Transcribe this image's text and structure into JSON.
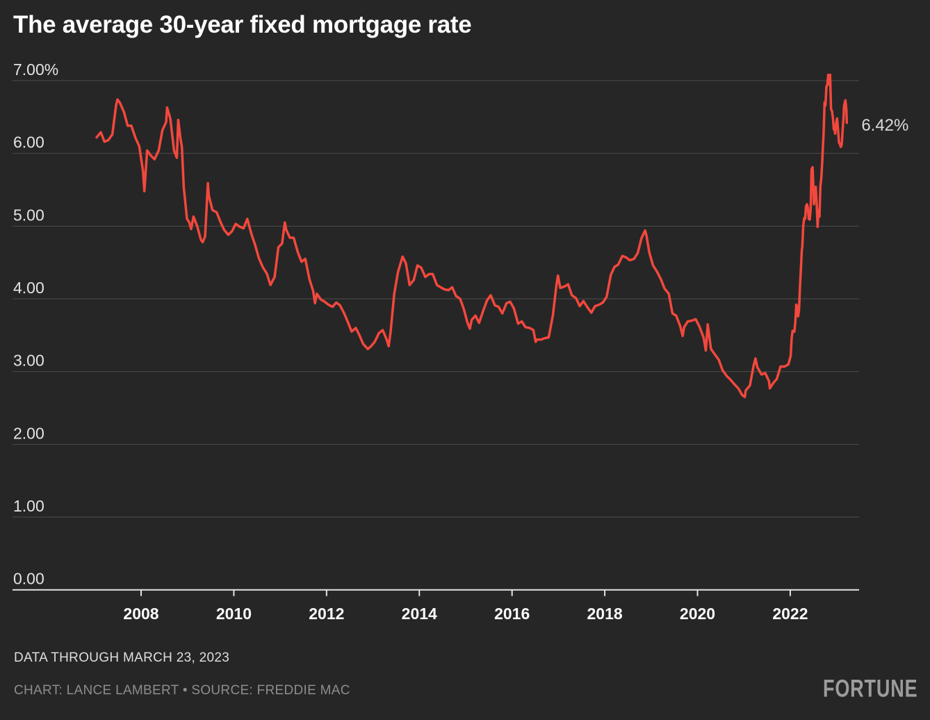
{
  "colors": {
    "background": "#262626",
    "grid": "#4e4e4e",
    "axis": "#e3e3e1",
    "line": "#f3483d",
    "title": "#ffffff",
    "y_label": "#e4e4e4",
    "x_label": "#fafafa",
    "annotation": "#dadada",
    "note": "#dedede",
    "credit": "#8d8d8d",
    "logo": "#9c9c9c"
  },
  "footer": {
    "note": "DATA THROUGH MARCH 23, 2023",
    "credit": "CHART: LANCE LAMBERT • SOURCE: FREDDIE MAC",
    "logo": "FORTUNE"
  },
  "chart_data": {
    "type": "line",
    "title": "The average 30-year fixed mortgage rate",
    "xlabel": "",
    "ylabel": "",
    "grid": "horizontal",
    "legend": "none",
    "xlim": [
      2005.2,
      2023.5
    ],
    "ylim": [
      0,
      7.0
    ],
    "x_ticks": [
      2008,
      2010,
      2012,
      2014,
      2016,
      2018,
      2020,
      2022
    ],
    "y_ticks": [
      {
        "value": 7,
        "label": "7.00%"
      },
      {
        "value": 6,
        "label": "6.00"
      },
      {
        "value": 5,
        "label": "5.00"
      },
      {
        "value": 4,
        "label": "4.00"
      },
      {
        "value": 3,
        "label": "3.00"
      },
      {
        "value": 2,
        "label": "2.00"
      },
      {
        "value": 1,
        "label": "1.00"
      },
      {
        "value": 0,
        "label": "0.00"
      }
    ],
    "end_label": "6.42%",
    "last_value": 6.42,
    "series": [
      {
        "name": "30-year fixed mortgage rate (%)",
        "color": "#f3483d",
        "points": [
          [
            2007.04,
            6.22
          ],
          [
            2007.13,
            6.29
          ],
          [
            2007.21,
            6.16
          ],
          [
            2007.29,
            6.18
          ],
          [
            2007.38,
            6.26
          ],
          [
            2007.46,
            6.66
          ],
          [
            2007.49,
            6.74
          ],
          [
            2007.54,
            6.7
          ],
          [
            2007.63,
            6.57
          ],
          [
            2007.71,
            6.38
          ],
          [
            2007.79,
            6.38
          ],
          [
            2007.88,
            6.21
          ],
          [
            2007.96,
            6.1
          ],
          [
            2008.04,
            5.76
          ],
          [
            2008.07,
            5.48
          ],
          [
            2008.13,
            6.04
          ],
          [
            2008.21,
            5.97
          ],
          [
            2008.29,
            5.92
          ],
          [
            2008.38,
            6.04
          ],
          [
            2008.46,
            6.32
          ],
          [
            2008.54,
            6.43
          ],
          [
            2008.56,
            6.63
          ],
          [
            2008.63,
            6.48
          ],
          [
            2008.71,
            6.04
          ],
          [
            2008.77,
            5.94
          ],
          [
            2008.8,
            6.46
          ],
          [
            2008.85,
            6.2
          ],
          [
            2008.88,
            6.09
          ],
          [
            2008.92,
            5.53
          ],
          [
            2008.96,
            5.29
          ],
          [
            2008.99,
            5.1
          ],
          [
            2009.04,
            5.05
          ],
          [
            2009.08,
            4.96
          ],
          [
            2009.13,
            5.13
          ],
          [
            2009.21,
            5.0
          ],
          [
            2009.29,
            4.81
          ],
          [
            2009.33,
            4.78
          ],
          [
            2009.38,
            4.86
          ],
          [
            2009.44,
            5.59
          ],
          [
            2009.46,
            5.42
          ],
          [
            2009.54,
            5.22
          ],
          [
            2009.63,
            5.19
          ],
          [
            2009.71,
            5.06
          ],
          [
            2009.79,
            4.95
          ],
          [
            2009.88,
            4.88
          ],
          [
            2009.96,
            4.93
          ],
          [
            2010.04,
            5.03
          ],
          [
            2010.13,
            4.99
          ],
          [
            2010.21,
            4.97
          ],
          [
            2010.29,
            5.1
          ],
          [
            2010.38,
            4.89
          ],
          [
            2010.46,
            4.74
          ],
          [
            2010.54,
            4.56
          ],
          [
            2010.63,
            4.43
          ],
          [
            2010.71,
            4.35
          ],
          [
            2010.79,
            4.19
          ],
          [
            2010.88,
            4.3
          ],
          [
            2010.96,
            4.71
          ],
          [
            2011.04,
            4.76
          ],
          [
            2011.1,
            5.05
          ],
          [
            2011.13,
            4.95
          ],
          [
            2011.21,
            4.84
          ],
          [
            2011.29,
            4.84
          ],
          [
            2011.38,
            4.64
          ],
          [
            2011.46,
            4.51
          ],
          [
            2011.54,
            4.55
          ],
          [
            2011.63,
            4.27
          ],
          [
            2011.71,
            4.11
          ],
          [
            2011.75,
            3.94
          ],
          [
            2011.79,
            4.07
          ],
          [
            2011.88,
            3.99
          ],
          [
            2011.96,
            3.96
          ],
          [
            2012.04,
            3.92
          ],
          [
            2012.13,
            3.89
          ],
          [
            2012.21,
            3.95
          ],
          [
            2012.29,
            3.91
          ],
          [
            2012.38,
            3.8
          ],
          [
            2012.46,
            3.68
          ],
          [
            2012.54,
            3.55
          ],
          [
            2012.63,
            3.6
          ],
          [
            2012.71,
            3.5
          ],
          [
            2012.79,
            3.38
          ],
          [
            2012.89,
            3.31
          ],
          [
            2012.96,
            3.35
          ],
          [
            2013.04,
            3.41
          ],
          [
            2013.13,
            3.53
          ],
          [
            2013.21,
            3.57
          ],
          [
            2013.29,
            3.45
          ],
          [
            2013.34,
            3.35
          ],
          [
            2013.38,
            3.54
          ],
          [
            2013.46,
            4.07
          ],
          [
            2013.54,
            4.37
          ],
          [
            2013.64,
            4.58
          ],
          [
            2013.71,
            4.49
          ],
          [
            2013.79,
            4.19
          ],
          [
            2013.88,
            4.26
          ],
          [
            2013.96,
            4.46
          ],
          [
            2014.04,
            4.43
          ],
          [
            2014.13,
            4.3
          ],
          [
            2014.21,
            4.34
          ],
          [
            2014.29,
            4.34
          ],
          [
            2014.38,
            4.19
          ],
          [
            2014.46,
            4.16
          ],
          [
            2014.54,
            4.13
          ],
          [
            2014.63,
            4.12
          ],
          [
            2014.71,
            4.16
          ],
          [
            2014.79,
            4.04
          ],
          [
            2014.88,
            4.0
          ],
          [
            2014.96,
            3.86
          ],
          [
            2015.04,
            3.67
          ],
          [
            2015.09,
            3.59
          ],
          [
            2015.13,
            3.71
          ],
          [
            2015.21,
            3.77
          ],
          [
            2015.29,
            3.67
          ],
          [
            2015.38,
            3.84
          ],
          [
            2015.46,
            3.98
          ],
          [
            2015.54,
            4.05
          ],
          [
            2015.63,
            3.91
          ],
          [
            2015.71,
            3.89
          ],
          [
            2015.79,
            3.8
          ],
          [
            2015.88,
            3.94
          ],
          [
            2015.96,
            3.96
          ],
          [
            2016.04,
            3.87
          ],
          [
            2016.13,
            3.66
          ],
          [
            2016.21,
            3.69
          ],
          [
            2016.29,
            3.61
          ],
          [
            2016.38,
            3.6
          ],
          [
            2016.46,
            3.57
          ],
          [
            2016.51,
            3.41
          ],
          [
            2016.54,
            3.44
          ],
          [
            2016.63,
            3.44
          ],
          [
            2016.71,
            3.46
          ],
          [
            2016.79,
            3.47
          ],
          [
            2016.88,
            3.77
          ],
          [
            2016.96,
            4.2
          ],
          [
            2016.99,
            4.32
          ],
          [
            2017.04,
            4.15
          ],
          [
            2017.13,
            4.17
          ],
          [
            2017.21,
            4.2
          ],
          [
            2017.29,
            4.05
          ],
          [
            2017.38,
            4.01
          ],
          [
            2017.46,
            3.9
          ],
          [
            2017.54,
            3.97
          ],
          [
            2017.63,
            3.88
          ],
          [
            2017.71,
            3.81
          ],
          [
            2017.79,
            3.9
          ],
          [
            2017.88,
            3.92
          ],
          [
            2017.96,
            3.95
          ],
          [
            2018.04,
            4.03
          ],
          [
            2018.13,
            4.33
          ],
          [
            2018.21,
            4.44
          ],
          [
            2018.29,
            4.47
          ],
          [
            2018.38,
            4.59
          ],
          [
            2018.46,
            4.57
          ],
          [
            2018.54,
            4.53
          ],
          [
            2018.63,
            4.55
          ],
          [
            2018.71,
            4.63
          ],
          [
            2018.79,
            4.83
          ],
          [
            2018.87,
            4.94
          ],
          [
            2018.9,
            4.87
          ],
          [
            2018.96,
            4.64
          ],
          [
            2019.04,
            4.46
          ],
          [
            2019.13,
            4.37
          ],
          [
            2019.21,
            4.27
          ],
          [
            2019.29,
            4.14
          ],
          [
            2019.38,
            4.07
          ],
          [
            2019.46,
            3.8
          ],
          [
            2019.54,
            3.77
          ],
          [
            2019.63,
            3.62
          ],
          [
            2019.68,
            3.49
          ],
          [
            2019.71,
            3.61
          ],
          [
            2019.79,
            3.69
          ],
          [
            2019.88,
            3.7
          ],
          [
            2019.96,
            3.72
          ],
          [
            2020.04,
            3.62
          ],
          [
            2020.13,
            3.47
          ],
          [
            2020.18,
            3.29
          ],
          [
            2020.22,
            3.65
          ],
          [
            2020.29,
            3.31
          ],
          [
            2020.38,
            3.23
          ],
          [
            2020.46,
            3.16
          ],
          [
            2020.54,
            3.02
          ],
          [
            2020.63,
            2.94
          ],
          [
            2020.71,
            2.89
          ],
          [
            2020.79,
            2.83
          ],
          [
            2020.88,
            2.77
          ],
          [
            2020.96,
            2.68
          ],
          [
            2021.02,
            2.65
          ],
          [
            2021.04,
            2.74
          ],
          [
            2021.13,
            2.81
          ],
          [
            2021.21,
            3.08
          ],
          [
            2021.25,
            3.18
          ],
          [
            2021.29,
            3.06
          ],
          [
            2021.38,
            2.96
          ],
          [
            2021.46,
            2.98
          ],
          [
            2021.54,
            2.87
          ],
          [
            2021.56,
            2.77
          ],
          [
            2021.63,
            2.84
          ],
          [
            2021.71,
            2.9
          ],
          [
            2021.79,
            3.07
          ],
          [
            2021.88,
            3.07
          ],
          [
            2021.96,
            3.1
          ],
          [
            2022.01,
            3.22
          ],
          [
            2022.03,
            3.45
          ],
          [
            2022.05,
            3.56
          ],
          [
            2022.07,
            3.55
          ],
          [
            2022.09,
            3.55
          ],
          [
            2022.11,
            3.69
          ],
          [
            2022.13,
            3.92
          ],
          [
            2022.15,
            3.89
          ],
          [
            2022.17,
            3.76
          ],
          [
            2022.19,
            3.85
          ],
          [
            2022.21,
            4.16
          ],
          [
            2022.23,
            4.42
          ],
          [
            2022.25,
            4.67
          ],
          [
            2022.26,
            4.72
          ],
          [
            2022.28,
            5.0
          ],
          [
            2022.3,
            5.11
          ],
          [
            2022.32,
            5.1
          ],
          [
            2022.34,
            5.27
          ],
          [
            2022.36,
            5.3
          ],
          [
            2022.38,
            5.25
          ],
          [
            2022.4,
            5.1
          ],
          [
            2022.42,
            5.09
          ],
          [
            2022.44,
            5.23
          ],
          [
            2022.46,
            5.78
          ],
          [
            2022.48,
            5.81
          ],
          [
            2022.49,
            5.7
          ],
          [
            2022.51,
            5.3
          ],
          [
            2022.53,
            5.51
          ],
          [
            2022.55,
            5.54
          ],
          [
            2022.57,
            5.3
          ],
          [
            2022.59,
            4.99
          ],
          [
            2022.61,
            5.22
          ],
          [
            2022.63,
            5.13
          ],
          [
            2022.65,
            5.55
          ],
          [
            2022.67,
            5.66
          ],
          [
            2022.69,
            5.89
          ],
          [
            2022.7,
            6.02
          ],
          [
            2022.72,
            6.29
          ],
          [
            2022.74,
            6.7
          ],
          [
            2022.76,
            6.66
          ],
          [
            2022.78,
            6.92
          ],
          [
            2022.8,
            6.94
          ],
          [
            2022.82,
            7.08
          ],
          [
            2022.84,
            6.95
          ],
          [
            2022.86,
            7.08
          ],
          [
            2022.88,
            6.61
          ],
          [
            2022.9,
            6.58
          ],
          [
            2022.92,
            6.49
          ],
          [
            2022.94,
            6.33
          ],
          [
            2022.96,
            6.31
          ],
          [
            2022.97,
            6.27
          ],
          [
            2022.99,
            6.42
          ],
          [
            2023.01,
            6.48
          ],
          [
            2023.03,
            6.33
          ],
          [
            2023.05,
            6.15
          ],
          [
            2023.07,
            6.13
          ],
          [
            2023.09,
            6.09
          ],
          [
            2023.11,
            6.12
          ],
          [
            2023.13,
            6.32
          ],
          [
            2023.15,
            6.5
          ],
          [
            2023.16,
            6.65
          ],
          [
            2023.19,
            6.73
          ],
          [
            2023.21,
            6.6
          ],
          [
            2023.22,
            6.42
          ]
        ]
      }
    ]
  }
}
